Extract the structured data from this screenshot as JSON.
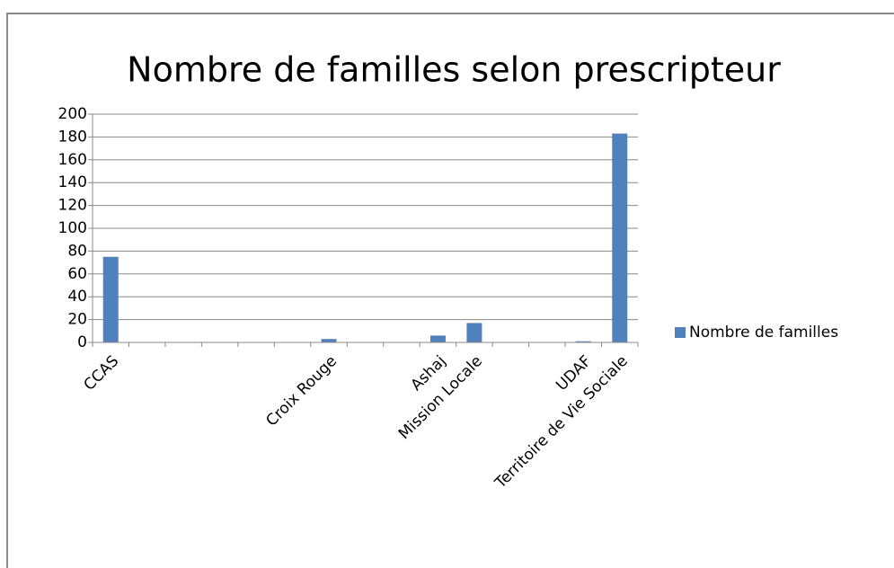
{
  "chart_data": {
    "type": "bar",
    "title": "Nombre de familles selon prescripteur",
    "categories": [
      "CCAS",
      null,
      null,
      null,
      null,
      null,
      "Croix Rouge",
      null,
      null,
      "Ashaj",
      "Mission Locale",
      null,
      null,
      "UDAF",
      "Territoire de Vie Sociale"
    ],
    "series": [
      {
        "name": "Nombre de familles",
        "color": "#4f81bd",
        "values": [
          75,
          0,
          0,
          0,
          0,
          0,
          3,
          0,
          0,
          6,
          17,
          0,
          0,
          1,
          183
        ]
      }
    ],
    "ylim": [
      0,
      200
    ],
    "yticks": [
      0,
      20,
      40,
      60,
      80,
      100,
      120,
      140,
      160,
      180,
      200
    ],
    "grid": true,
    "legend": "right"
  }
}
